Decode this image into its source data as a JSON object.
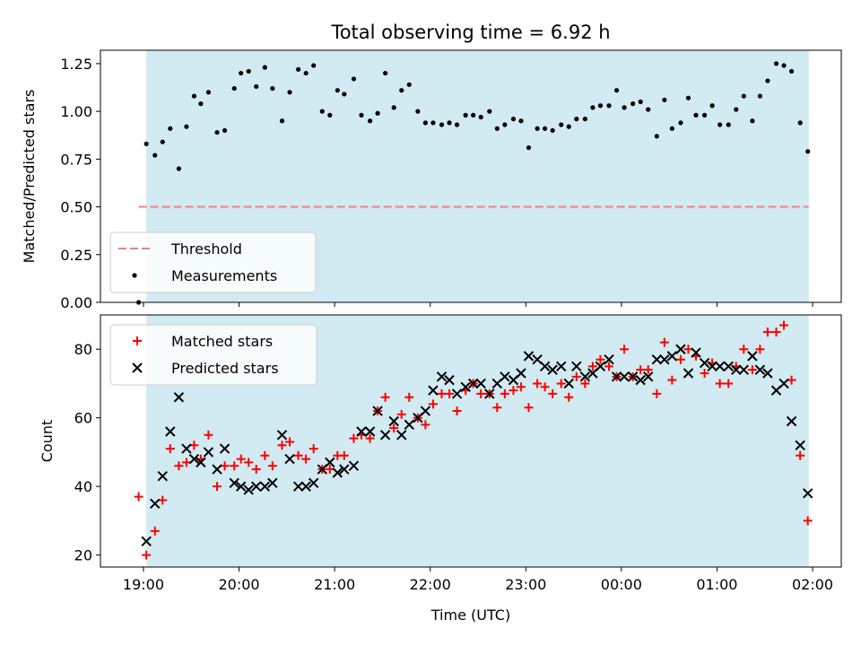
{
  "chart_data": {
    "title": "Total observing time = 6.92 h",
    "xlabel": "Time (UTC)",
    "x_unit": "hours after 19:00 UTC",
    "xlim": [
      -0.45,
      7.3
    ],
    "xticks": [
      {
        "value": 0,
        "label": "19:00"
      },
      {
        "value": 1,
        "label": "20:00"
      },
      {
        "value": 2,
        "label": "21:00"
      },
      {
        "value": 3,
        "label": "22:00"
      },
      {
        "value": 4,
        "label": "23:00"
      },
      {
        "value": 5,
        "label": "00:00"
      },
      {
        "value": 6,
        "label": "01:00"
      },
      {
        "value": 7,
        "label": "02:00"
      }
    ],
    "shaded_span": [
      0.03,
      6.96
    ],
    "colors": {
      "shade": "#add8e6",
      "threshold": "#f08080",
      "matched": "#ff0000",
      "predicted": "#000000",
      "measurements": "#000000"
    },
    "panels": [
      {
        "type": "scatter",
        "ylabel": "Matched/Predicted stars",
        "ylim": [
          0,
          1.32
        ],
        "yticks": [
          "0.00",
          "0.25",
          "0.50",
          "0.75",
          "1.00",
          "1.25"
        ],
        "legend_position": "lower-left",
        "threshold": {
          "name": "Threshold",
          "value": 0.5,
          "x_range": [
            -0.05,
            6.96
          ]
        },
        "series": [
          {
            "name": "Measurements",
            "x": [
              -0.05,
              0.03,
              0.12,
              0.2,
              0.28,
              0.37,
              0.45,
              0.53,
              0.6,
              0.68,
              0.77,
              0.85,
              0.95,
              1.02,
              1.1,
              1.18,
              1.27,
              1.35,
              1.45,
              1.53,
              1.62,
              1.7,
              1.78,
              1.87,
              1.95,
              2.03,
              2.1,
              2.2,
              2.28,
              2.37,
              2.45,
              2.53,
              2.62,
              2.7,
              2.78,
              2.87,
              2.95,
              3.03,
              3.12,
              3.2,
              3.28,
              3.37,
              3.45,
              3.53,
              3.62,
              3.7,
              3.78,
              3.87,
              3.95,
              4.03,
              4.12,
              4.2,
              4.28,
              4.37,
              4.45,
              4.53,
              4.62,
              4.7,
              4.78,
              4.87,
              4.95,
              5.03,
              5.12,
              5.2,
              5.28,
              5.37,
              5.45,
              5.53,
              5.62,
              5.7,
              5.78,
              5.87,
              5.95,
              6.03,
              6.12,
              6.2,
              6.28,
              6.37,
              6.45,
              6.53,
              6.62,
              6.7,
              6.78,
              6.87,
              6.95
            ],
            "y": [
              0.0,
              0.83,
              0.77,
              0.84,
              0.91,
              0.7,
              0.92,
              1.08,
              1.04,
              1.1,
              0.89,
              0.9,
              1.12,
              1.2,
              1.21,
              1.13,
              1.23,
              1.12,
              0.95,
              1.1,
              1.22,
              1.2,
              1.24,
              1.0,
              0.98,
              1.11,
              1.09,
              1.17,
              0.98,
              0.95,
              0.99,
              1.2,
              1.02,
              1.11,
              1.14,
              1.0,
              0.94,
              0.94,
              0.93,
              0.94,
              0.93,
              0.98,
              0.98,
              0.97,
              1.0,
              0.91,
              0.93,
              0.96,
              0.95,
              0.81,
              0.91,
              0.91,
              0.9,
              0.93,
              0.92,
              0.96,
              0.96,
              1.02,
              1.03,
              1.03,
              1.11,
              1.02,
              1.04,
              1.05,
              1.01,
              0.87,
              1.06,
              0.91,
              0.94,
              1.07,
              0.98,
              0.98,
              1.03,
              0.93,
              0.93,
              1.01,
              1.08,
              0.95,
              1.08,
              1.16,
              1.25,
              1.24,
              1.21,
              0.94,
              0.79
            ]
          }
        ]
      },
      {
        "type": "scatter",
        "ylabel": "Count",
        "ylim": [
          16.5,
          90
        ],
        "yticks": [
          "20",
          "40",
          "60",
          "80"
        ],
        "legend_position": "top-left",
        "series": [
          {
            "name": "Matched stars",
            "marker": "+",
            "x": [
              -0.05,
              0.03,
              0.12,
              0.2,
              0.28,
              0.37,
              0.45,
              0.53,
              0.6,
              0.68,
              0.77,
              0.85,
              0.95,
              1.02,
              1.1,
              1.18,
              1.27,
              1.35,
              1.45,
              1.53,
              1.62,
              1.7,
              1.78,
              1.87,
              1.95,
              2.03,
              2.1,
              2.2,
              2.28,
              2.37,
              2.45,
              2.53,
              2.62,
              2.7,
              2.78,
              2.87,
              2.95,
              3.03,
              3.12,
              3.2,
              3.28,
              3.37,
              3.45,
              3.53,
              3.62,
              3.7,
              3.78,
              3.87,
              3.95,
              4.03,
              4.12,
              4.2,
              4.28,
              4.37,
              4.45,
              4.53,
              4.62,
              4.7,
              4.78,
              4.87,
              4.95,
              5.03,
              5.12,
              5.2,
              5.28,
              5.37,
              5.45,
              5.53,
              5.62,
              5.7,
              5.78,
              5.87,
              5.95,
              6.03,
              6.12,
              6.2,
              6.28,
              6.37,
              6.45,
              6.53,
              6.62,
              6.7,
              6.78,
              6.87,
              6.95
            ],
            "y": [
              37,
              20,
              27,
              36,
              51,
              46,
              47,
              52,
              48,
              55,
              40,
              46,
              46,
              48,
              47,
              45,
              49,
              46,
              52,
              53,
              49,
              48,
              51,
              45,
              45,
              49,
              49,
              54,
              55,
              54,
              62,
              66,
              57,
              61,
              66,
              60,
              58,
              64,
              67,
              67,
              62,
              68,
              70,
              67,
              67,
              63,
              67,
              68,
              69,
              63,
              70,
              69,
              67,
              70,
              66,
              72,
              70,
              75,
              77,
              75,
              72,
              80,
              72,
              74,
              74,
              67,
              82,
              71,
              77,
              80,
              78,
              73,
              76,
              70,
              70,
              75,
              80,
              74,
              80,
              85,
              85,
              87,
              71,
              49,
              30
            ]
          },
          {
            "name": "Predicted stars",
            "marker": "x",
            "x": [
              0.03,
              0.12,
              0.2,
              0.28,
              0.37,
              0.45,
              0.53,
              0.6,
              0.68,
              0.77,
              0.85,
              0.95,
              1.02,
              1.1,
              1.18,
              1.27,
              1.35,
              1.45,
              1.53,
              1.62,
              1.7,
              1.78,
              1.87,
              1.95,
              2.03,
              2.1,
              2.2,
              2.28,
              2.37,
              2.45,
              2.53,
              2.62,
              2.7,
              2.78,
              2.87,
              2.95,
              3.03,
              3.12,
              3.2,
              3.28,
              3.37,
              3.45,
              3.53,
              3.62,
              3.7,
              3.78,
              3.87,
              3.95,
              4.03,
              4.12,
              4.2,
              4.28,
              4.37,
              4.45,
              4.53,
              4.62,
              4.7,
              4.78,
              4.87,
              4.95,
              5.03,
              5.12,
              5.2,
              5.28,
              5.37,
              5.45,
              5.53,
              5.62,
              5.7,
              5.78,
              5.87,
              5.95,
              6.03,
              6.12,
              6.2,
              6.28,
              6.37,
              6.45,
              6.53,
              6.62,
              6.7,
              6.78,
              6.87,
              6.95
            ],
            "y": [
              24,
              35,
              43,
              56,
              66,
              51,
              48,
              47,
              50,
              45,
              51,
              41,
              40,
              39,
              40,
              40,
              41,
              55,
              48,
              40,
              40,
              41,
              45,
              47,
              44,
              45,
              46,
              56,
              56,
              62,
              55,
              59,
              55,
              58,
              60,
              62,
              68,
              72,
              71,
              67,
              69,
              70,
              70,
              67,
              70,
              72,
              71,
              73,
              78,
              77,
              75,
              74,
              75,
              70,
              75,
              72,
              73,
              75,
              77,
              72,
              72,
              72,
              71,
              72,
              77,
              77,
              78,
              80,
              73,
              79,
              76,
              75,
              75,
              75,
              74,
              74,
              78,
              74,
              73,
              68,
              70,
              59,
              52,
              38
            ]
          }
        ]
      }
    ]
  }
}
